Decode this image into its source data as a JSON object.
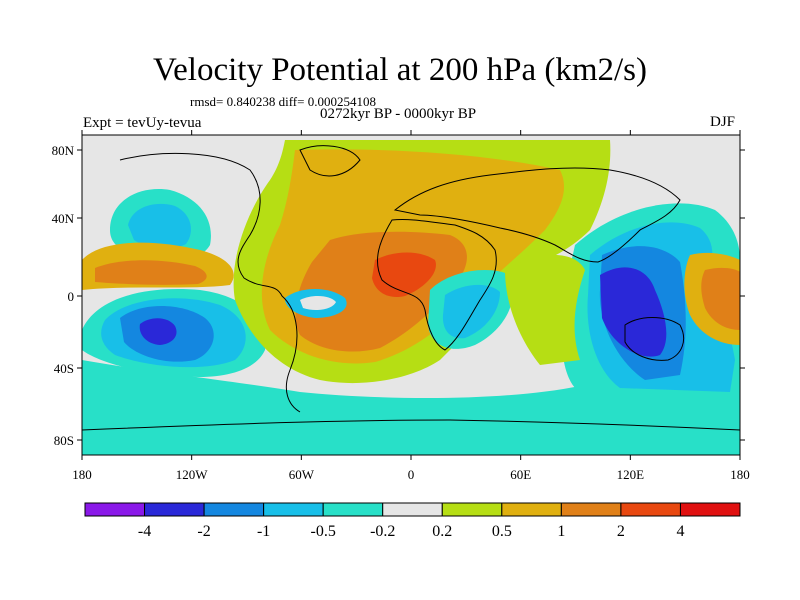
{
  "header": {
    "title": "Velocity Potential at 200 hPa (km2/s)",
    "stats": "rmsd= 0.840238 diff= 0.000254108",
    "experiment": "Expt = tevUy-tevua",
    "period": "0272kyr BP - 0000kyr BP",
    "season": "DJF"
  },
  "map": {
    "projection": "cylindrical-equidistant",
    "lon_ticks": [
      "180",
      "120W",
      "60W",
      "0",
      "60E",
      "120E",
      "180"
    ],
    "lat_ticks": [
      "80N",
      "40N",
      "0",
      "40S",
      "80S"
    ],
    "background_color": "#e6e6e6"
  },
  "colorbar": {
    "levels": [
      "-4",
      "-2",
      "-1",
      "-0.5",
      "-0.2",
      "0.2",
      "0.5",
      "1",
      "2",
      "4"
    ],
    "colors": [
      "#8a18e8",
      "#2a28d8",
      "#1487e0",
      "#18bfe8",
      "#28e0c8",
      "#e6e6e6",
      "#b6de14",
      "#e0b010",
      "#e08018",
      "#e84810",
      "#e01010"
    ]
  }
}
